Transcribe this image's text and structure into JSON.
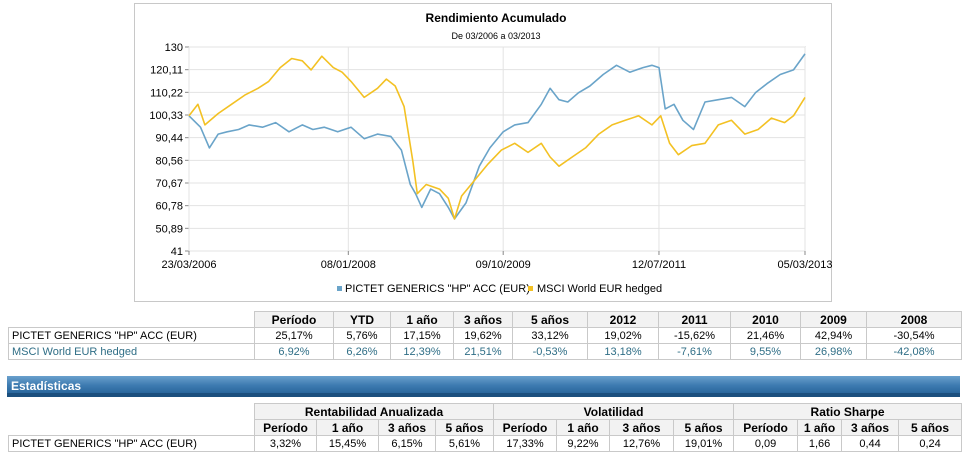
{
  "chart_data": {
    "type": "line",
    "title": "Rendimiento Acumulado",
    "subtitle": "De 03/2006 a 03/2013",
    "ylim": [
      41,
      130
    ],
    "y_ticks": [
      "130",
      "120,11",
      "110,22",
      "100,33",
      "90,44",
      "80,56",
      "70,67",
      "60,78",
      "50,89",
      "41"
    ],
    "y_tick_values": [
      130,
      120.11,
      110.22,
      100.33,
      90.44,
      80.56,
      70.67,
      60.78,
      50.89,
      41
    ],
    "x_ticks": [
      "23/03/2006",
      "08/01/2008",
      "09/10/2009",
      "12/07/2011",
      "05/03/2013"
    ],
    "x_tick_values": [
      2006.22,
      2008.02,
      2009.77,
      2011.53,
      2013.18
    ],
    "xlim": [
      2006.22,
      2013.18
    ],
    "series": [
      {
        "name": "PICTET GENERICS \"HP\" ACC (EUR)",
        "color": "#6aa4c9",
        "x": [
          2006.22,
          2006.35,
          2006.45,
          2006.55,
          2006.65,
          2006.78,
          2006.9,
          2007.05,
          2007.2,
          2007.35,
          2007.5,
          2007.62,
          2007.75,
          2007.9,
          2008.05,
          2008.2,
          2008.35,
          2008.5,
          2008.62,
          2008.72,
          2008.78,
          2008.85,
          2008.95,
          2009.05,
          2009.15,
          2009.22,
          2009.35,
          2009.5,
          2009.62,
          2009.77,
          2009.9,
          2010.05,
          2010.2,
          2010.3,
          2010.4,
          2010.5,
          2010.62,
          2010.75,
          2010.9,
          2011.05,
          2011.2,
          2011.35,
          2011.45,
          2011.53,
          2011.6,
          2011.7,
          2011.8,
          2011.92,
          2012.05,
          2012.2,
          2012.35,
          2012.5,
          2012.62,
          2012.75,
          2012.9,
          2013.05,
          2013.18
        ],
        "values": [
          100,
          95,
          86,
          92,
          93,
          94,
          96,
          95,
          97,
          93,
          96,
          94,
          95,
          93,
          95,
          90,
          92,
          91,
          85,
          70,
          66,
          60,
          68,
          66,
          60,
          55,
          62,
          78,
          86,
          93,
          96,
          97,
          105,
          112,
          107,
          106,
          110,
          113,
          118,
          122,
          119,
          121,
          122,
          121,
          103,
          105,
          98,
          94,
          106,
          107,
          108,
          104,
          110,
          114,
          118,
          120,
          127
        ]
      },
      {
        "name": "MSCI World EUR hedged",
        "color": "#f3c123",
        "x": [
          2006.22,
          2006.32,
          2006.4,
          2006.55,
          2006.7,
          2006.85,
          2007.0,
          2007.12,
          2007.25,
          2007.38,
          2007.5,
          2007.6,
          2007.72,
          2007.85,
          2007.95,
          2008.05,
          2008.2,
          2008.35,
          2008.45,
          2008.55,
          2008.65,
          2008.75,
          2008.8,
          2008.9,
          2009.05,
          2009.15,
          2009.22,
          2009.3,
          2009.45,
          2009.6,
          2009.75,
          2009.9,
          2010.05,
          2010.2,
          2010.3,
          2010.4,
          2010.55,
          2010.7,
          2010.85,
          2011.0,
          2011.15,
          2011.3,
          2011.45,
          2011.55,
          2011.65,
          2011.75,
          2011.9,
          2012.05,
          2012.2,
          2012.35,
          2012.5,
          2012.65,
          2012.8,
          2012.95,
          2013.05,
          2013.18
        ],
        "values": [
          100,
          105,
          96,
          101,
          105,
          109,
          112,
          115,
          121,
          125,
          124,
          120,
          126,
          121,
          119,
          115,
          108,
          112,
          116,
          113,
          104,
          80,
          66,
          70,
          68,
          64,
          55,
          65,
          72,
          79,
          85,
          88,
          84,
          88,
          82,
          78,
          82,
          86,
          92,
          96,
          98,
          100,
          96,
          100,
          88,
          83,
          87,
          88,
          96,
          98,
          92,
          94,
          99,
          97,
          100,
          108
        ]
      }
    ]
  },
  "perf_table": {
    "headers": [
      "Período",
      "YTD",
      "1 año",
      "3 años",
      "5 años",
      "2012",
      "2011",
      "2010",
      "2009",
      "2008"
    ],
    "rows": [
      {
        "name": "PICTET GENERICS \"HP\" ACC (EUR)",
        "values": [
          "25,17%",
          "5,76%",
          "17,15%",
          "19,62%",
          "33,12%",
          "19,02%",
          "-15,62%",
          "21,46%",
          "42,94%",
          "-30,54%"
        ]
      },
      {
        "name": "MSCI World EUR hedged",
        "values": [
          "6,92%",
          "6,26%",
          "12,39%",
          "21,51%",
          "-0,53%",
          "13,18%",
          "-7,61%",
          "9,55%",
          "26,98%",
          "-42,08%"
        ]
      }
    ]
  },
  "stats": {
    "section_title": "Estadísticas",
    "groups": [
      "Rentabilidad Anualizada",
      "Volatilidad",
      "Ratio Sharpe"
    ],
    "subheaders": [
      "Período",
      "1 año",
      "3 años",
      "5 años",
      "Período",
      "1 año",
      "3 años",
      "5 años",
      "Período",
      "1 año",
      "3 años",
      "5 años"
    ],
    "row": {
      "name": "PICTET GENERICS \"HP\" ACC (EUR)",
      "values": [
        "3,32%",
        "15,45%",
        "6,15%",
        "5,61%",
        "17,33%",
        "9,22%",
        "12,76%",
        "19,01%",
        "0,09",
        "1,66",
        "0,44",
        "0,24"
      ]
    }
  }
}
